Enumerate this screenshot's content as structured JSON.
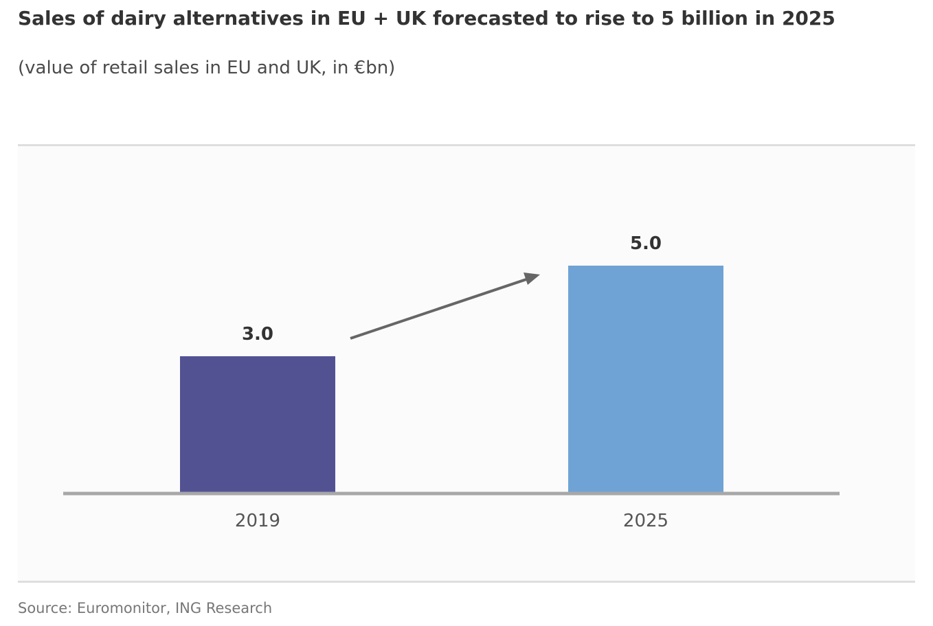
{
  "header": {
    "title": "Sales of dairy alternatives in EU + UK forecasted to rise to 5 billion in 2025",
    "subtitle": "(value of retail sales in EU and UK, in €bn)"
  },
  "footer": {
    "source": "Source: Euromonitor, ING Research"
  },
  "chart_data": {
    "type": "bar",
    "categories": [
      "2019",
      "2025"
    ],
    "values": [
      3.0,
      5.0
    ],
    "value_labels": [
      "3.0",
      "5.0"
    ],
    "bar_colors": [
      "#525293",
      "#6fa3d5"
    ],
    "ylim": [
      0,
      6
    ],
    "grid": false,
    "legend": "none",
    "annotation": "arrow-from-2019-to-2025"
  }
}
